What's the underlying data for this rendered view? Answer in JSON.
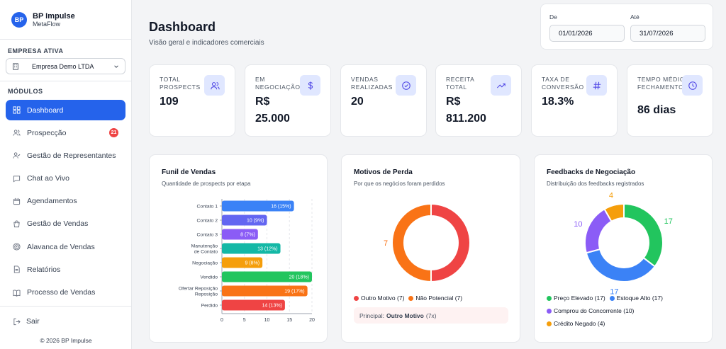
{
  "brand": {
    "logo": "BP",
    "name": "BP Impulse",
    "sub": "MetaFlow"
  },
  "sidebar": {
    "company_label": "EMPRESA ATIVA",
    "company_value": "Empresa Demo LTDA",
    "modules_label": "MÓDULOS",
    "items": [
      {
        "label": "Dashboard",
        "icon": "dashboard-icon",
        "active": true
      },
      {
        "label": "Prospecção",
        "icon": "users-icon",
        "badge": "21"
      },
      {
        "label": "Gestão de Representantes",
        "icon": "user-check-icon"
      },
      {
        "label": "Chat ao Vivo",
        "icon": "chat-icon"
      },
      {
        "label": "Agendamentos",
        "icon": "calendar-icon"
      },
      {
        "label": "Gestão de Vendas",
        "icon": "shopping-bag-icon"
      },
      {
        "label": "Alavanca de Vendas",
        "icon": "target-icon"
      },
      {
        "label": "Relatórios",
        "icon": "file-icon"
      },
      {
        "label": "Processo de Vendas",
        "icon": "book-icon"
      }
    ],
    "logout": "Sair",
    "copyright": "© 2026 BP Impulse"
  },
  "header": {
    "title": "Dashboard",
    "subtitle": "Visão geral e indicadores comerciais",
    "from_label": "De",
    "from_value": "01/01/2026",
    "to_label": "Até",
    "to_value": "31/07/2026"
  },
  "kpis": [
    {
      "label": "TOTAL PROSPECTS",
      "value_lines": [
        "109"
      ],
      "icon": "users-icon"
    },
    {
      "label": "EM NEGOCIAÇÃO",
      "value_lines": [
        "R$",
        "25.000"
      ],
      "icon": "dollar-icon"
    },
    {
      "label": "VENDAS REALIZADAS",
      "value_lines": [
        "20"
      ],
      "icon": "check-circle-icon"
    },
    {
      "label": "RECEITA TOTAL",
      "value_lines": [
        "R$",
        "811.200"
      ],
      "icon": "trending-up-icon"
    },
    {
      "label": "TAXA DE CONVERSÃO",
      "value_lines": [
        "18.3%"
      ],
      "icon": "hash-icon"
    },
    {
      "label": "TEMPO MÉDIO FECHAMENTO",
      "value_lines": [
        "86 dias"
      ],
      "icon": "clock-icon"
    }
  ],
  "funnel": {
    "title": "Funil de Vendas",
    "subtitle": "Quantidade de prospects por etapa"
  },
  "losses": {
    "title": "Motivos de Perda",
    "subtitle": "Por que os negócios foram perdidos",
    "principal_prefix": "Principal:",
    "principal_name": "Outro Motivo",
    "principal_count": "(7x)"
  },
  "feedbacks": {
    "title": "Feedbacks de Negociação",
    "subtitle": "Distribuição dos feedbacks registrados"
  },
  "chart_data": [
    {
      "type": "bar",
      "orientation": "horizontal",
      "title": "Funil de Vendas",
      "subtitle": "Quantidade de prospects por etapa",
      "categories": [
        "Contato 1",
        "Contato 2",
        "Contato 3",
        "Manutenção de Contato",
        "Negociação",
        "Vendido",
        "Ofertar Reposição",
        "Perdido"
      ],
      "values": [
        16,
        10,
        8,
        13,
        9,
        20,
        19,
        14
      ],
      "data_labels": [
        "16 (15%)",
        "10 (9%)",
        "8 (7%)",
        "13 (12%)",
        "9 (8%)",
        "20 (18%)",
        "19 (17%)",
        "14 (13%)"
      ],
      "colors": [
        "#3b82f6",
        "#6366f1",
        "#8b5cf6",
        "#14b8a6",
        "#f59e0b",
        "#22c55e",
        "#f97316",
        "#ef4444"
      ],
      "xlim": [
        0,
        20
      ],
      "xticks": [
        0,
        5,
        10,
        15,
        20
      ],
      "grid": true
    },
    {
      "type": "pie",
      "donut": true,
      "title": "Motivos de Perda",
      "subtitle": "Por que os negócios foram perdidos",
      "labels": [
        "Outro Motivo",
        "Não Potencial"
      ],
      "values": [
        7,
        7
      ],
      "legend_labels": [
        "Outro Motivo (7)",
        "Não Potencial (7)"
      ],
      "slice_labels": [
        "",
        "7"
      ],
      "colors": [
        "#ef4444",
        "#f97316"
      ],
      "legend": "bottom"
    },
    {
      "type": "pie",
      "donut": true,
      "title": "Feedbacks de Negociação",
      "subtitle": "Distribuição dos feedbacks registrados",
      "labels": [
        "Preço Elevado",
        "Estoque Alto",
        "Comprou do Concorrente",
        "Crédito Negado"
      ],
      "values": [
        17,
        17,
        10,
        4
      ],
      "legend_labels": [
        "Preço Elevado (17)",
        "Estoque Alto (17)",
        "Comprou do Concorrente (10)",
        "Crédito Negado (4)"
      ],
      "slice_labels": [
        "17",
        "17",
        "10",
        "4"
      ],
      "colors": [
        "#22c55e",
        "#3b82f6",
        "#8b5cf6",
        "#f59e0b"
      ],
      "legend": "bottom"
    }
  ]
}
